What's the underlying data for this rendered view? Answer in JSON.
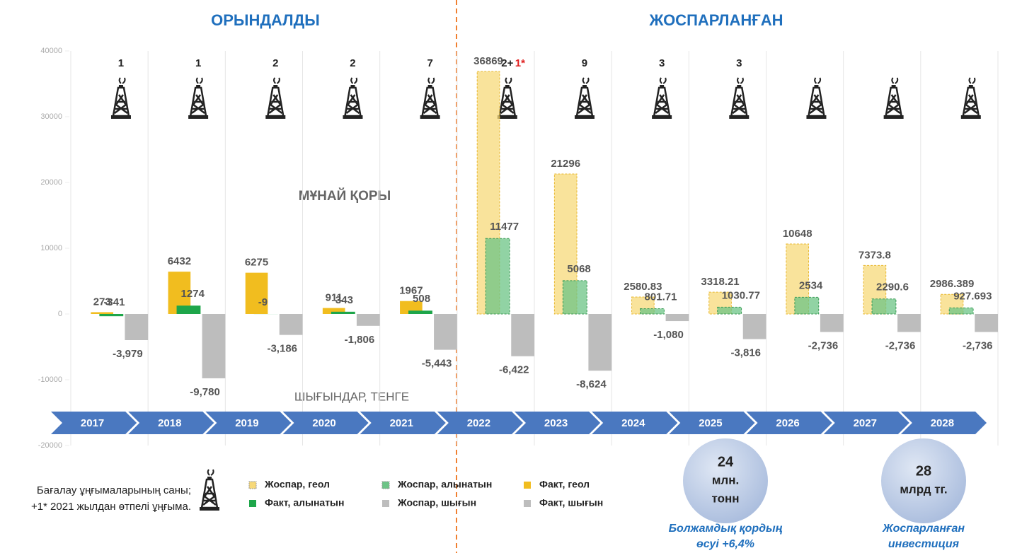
{
  "chart_data": {
    "type": "bar",
    "headings": [
      "ОРЫНДАЛДЫ",
      "ЖОСПАРЛАНҒАН"
    ],
    "annotations": [
      "МҰНАЙ ҚОРЫ",
      "ШЫҒЫНДАР, ТЕНГЕ"
    ],
    "categories": [
      "2017",
      "2018",
      "2019",
      "2020",
      "2021",
      "2022",
      "2023",
      "2024",
      "2025",
      "2026",
      "2027",
      "2028"
    ],
    "well_counts": [
      "1",
      "1",
      "2",
      "2",
      "7",
      "2+",
      "9",
      "3",
      "3",
      null,
      null,
      null
    ],
    "well_extra": "1*",
    "series": [
      {
        "name": "Жоспар, геол",
        "color": "#f7d97a",
        "dashed": true,
        "slot": "geol",
        "values": [
          null,
          null,
          null,
          null,
          null,
          36869,
          21296,
          2580.83,
          3318.21,
          10648,
          7373.8,
          2986.389
        ]
      },
      {
        "name": "Жоспар, алынатын",
        "color": "#6cc486",
        "dashed": true,
        "slot": "rec",
        "values": [
          null,
          null,
          null,
          null,
          null,
          11477,
          5068,
          801.71,
          1030.77,
          2534,
          2290.6,
          927.693
        ]
      },
      {
        "name": "Факт, геол",
        "color": "#f1bd1f",
        "dashed": false,
        "slot": "geol",
        "values": [
          273,
          6432,
          6275,
          911,
          1967,
          null,
          null,
          null,
          null,
          null,
          null,
          null
        ]
      },
      {
        "name": "Факт, алынатын",
        "color": "#1ea64a",
        "dashed": false,
        "slot": "rec",
        "values": [
          -341,
          1274,
          -9,
          343,
          508,
          null,
          null,
          null,
          null,
          null,
          null,
          null
        ]
      },
      {
        "name": "Жоспар, шығын",
        "color": "#bdbdbd",
        "dashed": false,
        "slot": "exp",
        "values": [
          null,
          null,
          null,
          null,
          null,
          -6422,
          -8624,
          -1080,
          -3816,
          -2736,
          -2736,
          -2736
        ],
        "value_labels": [
          null,
          null,
          null,
          null,
          null,
          "-6,422",
          "-8,624",
          "-1,080",
          "-3,816",
          "-2,736",
          "-2,736",
          "-2,736"
        ]
      },
      {
        "name": "Факт, шығын",
        "color": "#bdbdbd",
        "dashed": false,
        "slot": "exp",
        "values": [
          -3979,
          -9780,
          -3186,
          -1806,
          -5443,
          null,
          null,
          null,
          null,
          null,
          null,
          null
        ],
        "value_labels": [
          "-3,979",
          "-9,780",
          "-3,186",
          "-1,806",
          "-5,443",
          null,
          null,
          null,
          null,
          null,
          null,
          null
        ]
      }
    ],
    "ylim": [
      -20000,
      40000
    ],
    "yticks": [
      -20000,
      -10000,
      0,
      10000,
      20000,
      30000,
      40000
    ],
    "footnote": [
      "Бағалау ұңғымаларының саны;",
      "+1* 2021 жылдан өтпелі ұңғыма."
    ],
    "callouts": [
      {
        "lines": [
          "24",
          "млн.",
          "тонн"
        ],
        "caption": [
          "Болжамдық қордың",
          "өсуі +6,4%"
        ]
      },
      {
        "lines": [
          "28",
          "млрд тг."
        ],
        "caption": [
          "Жоспарланған",
          "инвестиция"
        ]
      }
    ]
  }
}
